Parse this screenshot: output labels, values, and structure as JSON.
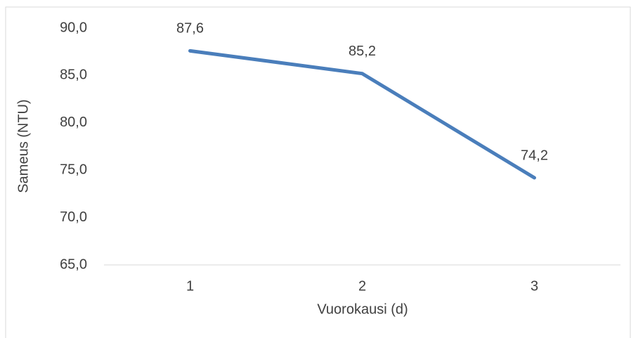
{
  "chart_data": {
    "type": "line",
    "categories": [
      "1",
      "2",
      "3"
    ],
    "series": [
      {
        "name": "Sameus",
        "color": "#4a7ebb",
        "values": [
          87.6,
          85.2,
          74.2
        ],
        "value_labels": [
          "87,6",
          "85,2",
          "74,2"
        ]
      }
    ],
    "ylim": [
      65,
      90
    ],
    "yticks": [
      {
        "value": 65,
        "label": "65,0"
      },
      {
        "value": 70,
        "label": "70,0"
      },
      {
        "value": 75,
        "label": "75,0"
      },
      {
        "value": 80,
        "label": "80,0"
      },
      {
        "value": 85,
        "label": "85,0"
      },
      {
        "value": 90,
        "label": "90,0"
      }
    ],
    "ylabel": "Sameus (NTU)",
    "xlabel": "Vuorokausi (d)",
    "grid": false
  }
}
